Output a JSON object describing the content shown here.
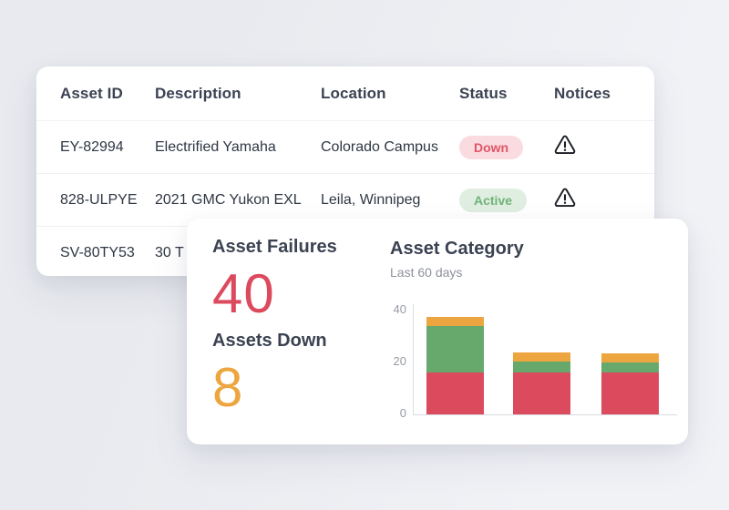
{
  "colors": {
    "background_left": "#e8eaef",
    "background_right": "#f1f2f6",
    "card_background": "#ffffff",
    "heading_text": "#3b4252",
    "cell_text": "#2f3744",
    "muted_text": "#8d929b",
    "axis_text": "#959aa4",
    "axis_line": "#d9dbe0",
    "status_down_bg": "#f9dbe0",
    "status_down_text": "#e15568",
    "status_active_bg": "#dfeee1",
    "status_active_text": "#72b377",
    "stat_failures": "#dc4a5e",
    "stat_down": "#eda63f"
  },
  "table": {
    "columns": [
      "Asset ID",
      "Description",
      "Location",
      "Status",
      "Notices"
    ],
    "rows": [
      {
        "asset_id": "EY-82994",
        "description": "Electrified Yamaha",
        "location": "Colorado Campus",
        "status": "Down",
        "status_kind": "down",
        "notice_icon": "warning-triangle-icon"
      },
      {
        "asset_id": "828-ULPYE",
        "description": "2021 GMC Yukon EXL",
        "location": "Leila, Winnipeg",
        "status": "Active",
        "status_kind": "active",
        "notice_icon": "warning-triangle-icon"
      },
      {
        "asset_id": "SV-80TY53",
        "description": "30 T",
        "location": "",
        "status": "",
        "notice_icon": ""
      }
    ]
  },
  "stats": [
    {
      "label": "Asset Failures",
      "value": "40",
      "color": "#dc4a5e"
    },
    {
      "label": "Assets Down",
      "value": "8",
      "color": "#eda63f"
    }
  ],
  "chart_data": {
    "type": "bar",
    "stacked": true,
    "title": "Asset Category",
    "subtitle": "Last 60 days",
    "categories": [
      "bar-1",
      "bar-2",
      "bar-3"
    ],
    "series": [
      {
        "name": "red",
        "color": "#dc4a5e",
        "values": [
          16,
          16,
          16
        ]
      },
      {
        "name": "green",
        "color": "#67a86d",
        "values": [
          18,
          4.5,
          4
        ]
      },
      {
        "name": "orange",
        "color": "#eda63f",
        "values": [
          3.5,
          3.5,
          3.5
        ]
      }
    ],
    "ylim": [
      0,
      40
    ],
    "y_ticks": [
      0,
      20,
      40
    ],
    "xlabel": "",
    "ylabel": "",
    "legend": false,
    "grid": false
  }
}
